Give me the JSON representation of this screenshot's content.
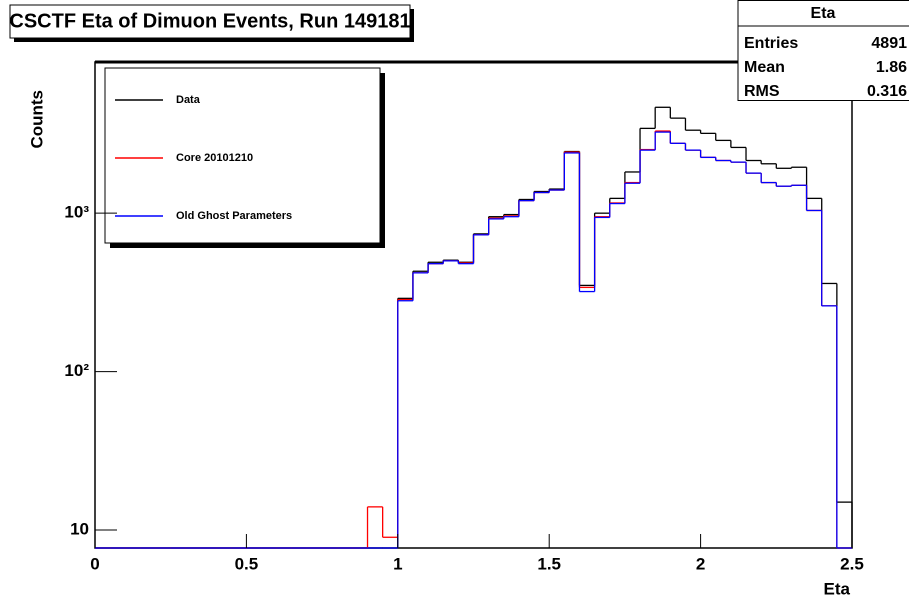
{
  "chart_data": {
    "type": "histogram",
    "title": "CSCTF Eta of Dimuon Events, Run 149181",
    "x_label": "Eta",
    "y_label": "Counts",
    "log_y": true,
    "legend": "upper left",
    "bins": [
      0,
      0.05,
      0.1,
      0.15,
      0.2,
      0.25,
      0.3,
      0.35,
      0.4,
      0.45,
      0.5,
      0.55,
      0.6,
      0.65,
      0.7,
      0.75,
      0.8,
      0.85,
      0.9,
      0.95,
      1,
      1.05,
      1.1,
      1.15,
      1.2,
      1.25,
      1.3,
      1.35,
      1.4,
      1.45,
      1.5,
      1.55,
      1.6,
      1.65,
      1.7,
      1.75,
      1.8,
      1.85,
      1.9,
      1.95,
      2,
      2.05,
      2.1,
      2.15,
      2.2,
      2.25,
      2.3,
      2.35,
      2.4,
      2.45,
      2.5
    ],
    "series": [
      {
        "name": "Data",
        "color": "#000000",
        "values": [
          0,
          0,
          0,
          0,
          0,
          0,
          0,
          0,
          0,
          0,
          0,
          0,
          0,
          0,
          0,
          0,
          0,
          0,
          0,
          0,
          290,
          430,
          490,
          505,
          490,
          740,
          950,
          980,
          1220,
          1370,
          1420,
          2450,
          350,
          1000,
          1240,
          1820,
          3430,
          4660,
          3980,
          3340,
          3190,
          2880,
          2600,
          2150,
          2050,
          1920,
          1950,
          1240,
          360,
          15
        ]
      },
      {
        "name": "Core 20101210",
        "color": "#ff0000",
        "values": [
          0,
          0,
          0,
          0,
          0,
          0,
          0,
          0,
          0,
          0,
          0,
          0,
          0,
          0,
          0,
          0,
          0,
          0,
          14,
          9,
          285,
          420,
          480,
          500,
          485,
          730,
          930,
          960,
          1200,
          1350,
          1400,
          2430,
          340,
          950,
          1160,
          1560,
          2520,
          3300,
          2760,
          2500,
          2250,
          2150,
          2100,
          1790,
          1560,
          1480,
          1500,
          1040,
          260,
          0
        ]
      },
      {
        "name": "Old Ghost Parameters",
        "color": "#0000ff",
        "values": [
          0,
          0,
          0,
          0,
          0,
          0,
          0,
          0,
          0,
          0,
          0,
          0,
          0,
          0,
          0,
          0,
          0,
          0,
          0,
          0,
          280,
          420,
          480,
          500,
          480,
          730,
          920,
          950,
          1200,
          1350,
          1400,
          2400,
          320,
          940,
          1150,
          1545,
          2500,
          3250,
          2760,
          2500,
          2250,
          2150,
          2100,
          1790,
          1560,
          1480,
          1500,
          1040,
          260,
          0
        ]
      }
    ],
    "xlim": [
      0,
      2.5
    ],
    "xticks": [
      0,
      0.5,
      1,
      1.5,
      2,
      2.5
    ],
    "ylim": [
      7.7,
      9000
    ],
    "yticks": [
      10,
      {
        "value": 100,
        "label": "10²"
      },
      {
        "value": 1000,
        "label": "10³"
      }
    ],
    "stats": {
      "title": "Eta",
      "rows": [
        [
          "Entries",
          "4891"
        ],
        [
          "Mean",
          "1.86"
        ],
        [
          "RMS",
          "0.316"
        ]
      ]
    }
  }
}
